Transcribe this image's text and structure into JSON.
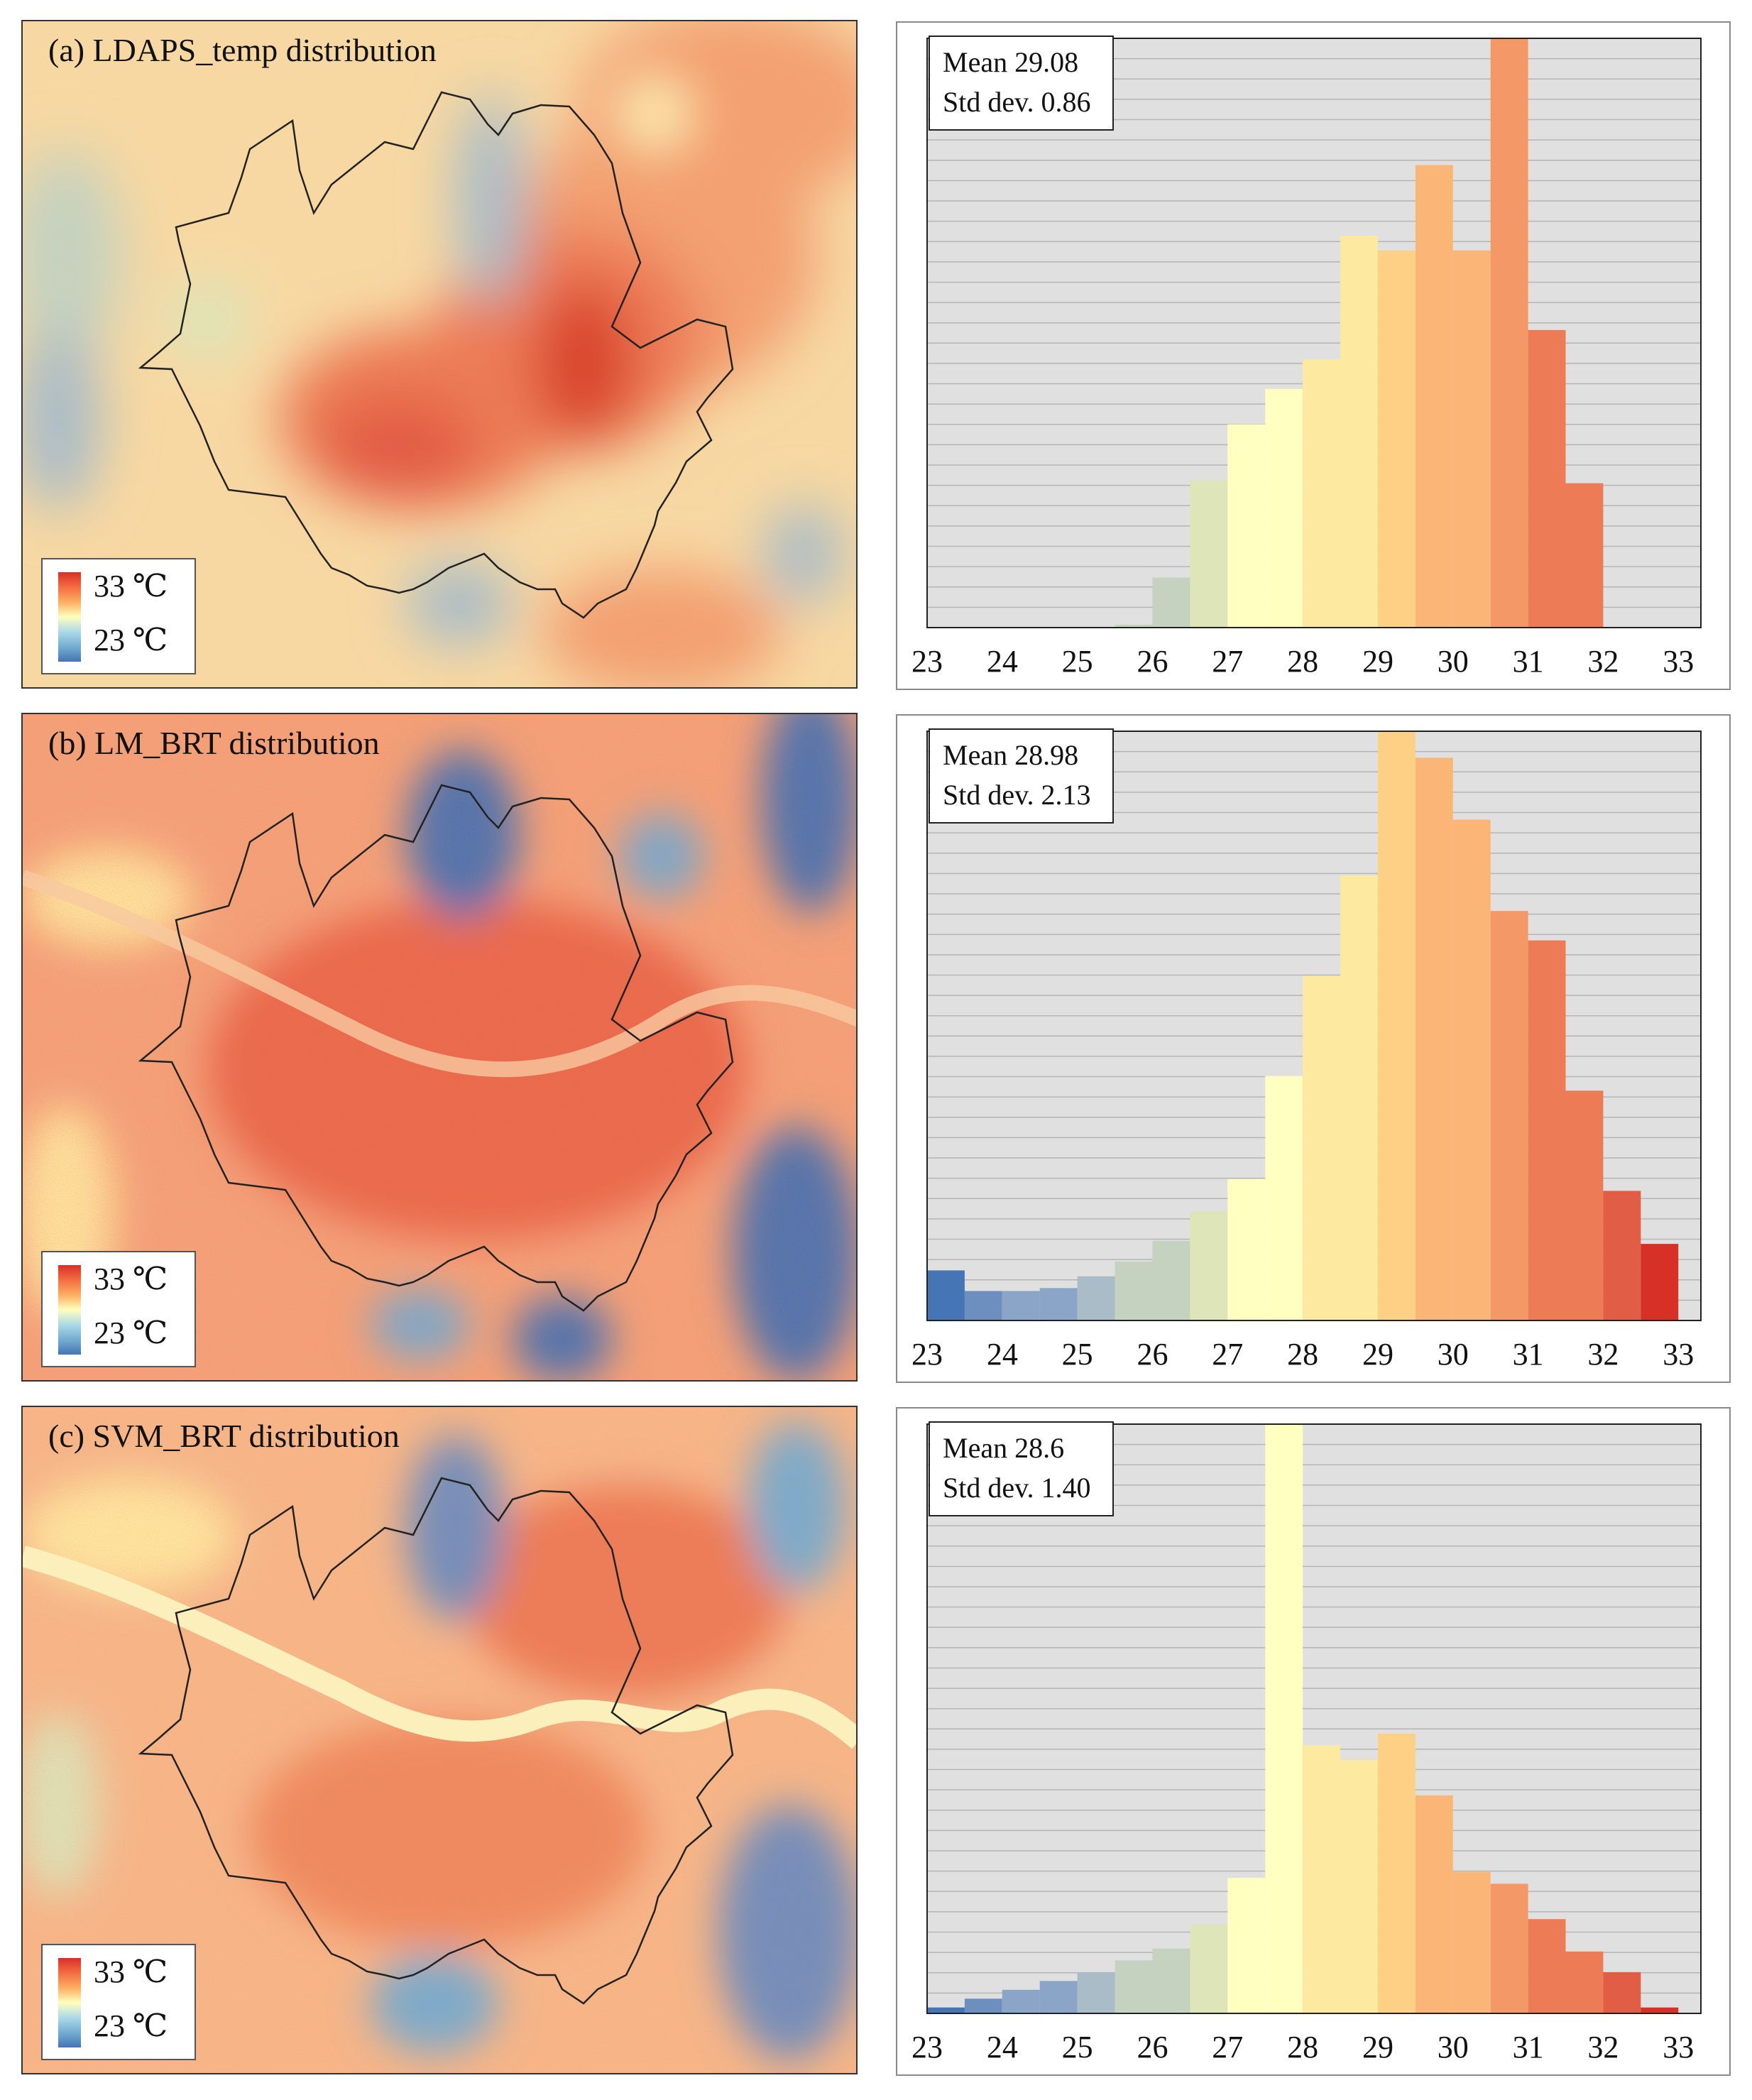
{
  "colors": {
    "palette": [
      "#4575b4",
      "#6c8fc0",
      "#8aa5c8",
      "#a9bcc8",
      "#c5d2bf",
      "#dde5b9",
      "#ffffbf",
      "#fee9a0",
      "#fdd085",
      "#fbb677",
      "#f59868",
      "#ec7b56",
      "#e25d45",
      "#d73027"
    ],
    "frame": "#333333",
    "grid": "#b5b5b5",
    "hist_bg": "#e0e0e0"
  },
  "maps": [
    {
      "id": "a",
      "title": "(a) LDAPS_temp distribution",
      "legend_high": "33 ℃",
      "legend_low": "23 ℃"
    },
    {
      "id": "b",
      "title": "(b) LM_BRT distribution",
      "legend_high": "33 ℃",
      "legend_low": "23 ℃"
    },
    {
      "id": "c",
      "title": "(c) SVM_BRT distribution",
      "legend_high": "33 ℃",
      "legend_low": "23 ℃"
    }
  ],
  "chart_data": [
    {
      "type": "bar",
      "title": "",
      "xlabel": "",
      "ylabel": "",
      "stats": {
        "mean_label": "Mean 29.08",
        "std_label": "Std dev. 0.86"
      },
      "x_ticks": [
        "23",
        "24",
        "25",
        "26",
        "27",
        "28",
        "29",
        "30",
        "31",
        "32",
        "33"
      ],
      "bin_width": 0.5,
      "bin_starts": [
        25.5,
        26.0,
        26.5,
        27.0,
        27.5,
        28.0,
        28.5,
        29.0,
        29.5,
        30.0,
        30.5,
        31.0,
        31.5
      ],
      "values": [
        0.5,
        8.5,
        25,
        34.5,
        40.5,
        45.5,
        66.5,
        64,
        78.5,
        64,
        100,
        50.5,
        24.5
      ],
      "xlim": [
        23,
        33.3
      ],
      "ylim": [
        0,
        100
      ],
      "grid": true
    },
    {
      "type": "bar",
      "title": "",
      "xlabel": "",
      "ylabel": "",
      "stats": {
        "mean_label": "Mean 28.98",
        "std_label": "Std dev. 2.13"
      },
      "x_ticks": [
        "23",
        "24",
        "25",
        "26",
        "27",
        "28",
        "29",
        "30",
        "31",
        "32",
        "33"
      ],
      "bin_width": 0.5,
      "bin_starts": [
        23.0,
        23.5,
        24.0,
        24.5,
        25.0,
        25.5,
        26.0,
        26.5,
        27.0,
        27.5,
        28.0,
        28.5,
        29.0,
        29.5,
        30.0,
        30.5,
        31.0,
        31.5,
        32.0,
        32.5
      ],
      "values": [
        8.5,
        5,
        5,
        5.5,
        7.5,
        10,
        13.5,
        18.5,
        24,
        41.5,
        58.5,
        75.5,
        100,
        95.5,
        85,
        69.5,
        64.5,
        39,
        22,
        13
      ],
      "xlim": [
        23,
        33.3
      ],
      "ylim": [
        0,
        100
      ],
      "grid": true
    },
    {
      "type": "bar",
      "title": "",
      "xlabel": "",
      "ylabel": "",
      "stats": {
        "mean_label": "Mean 28.6",
        "std_label": "Std dev. 1.40"
      },
      "x_ticks": [
        "23",
        "24",
        "25",
        "26",
        "27",
        "28",
        "29",
        "30",
        "31",
        "32",
        "33"
      ],
      "bin_width": 0.5,
      "bin_starts": [
        23.0,
        23.5,
        24.0,
        24.5,
        25.0,
        25.5,
        26.0,
        26.5,
        27.0,
        27.5,
        28.0,
        28.5,
        29.0,
        29.5,
        30.0,
        30.5,
        31.0,
        31.5,
        32.0,
        32.5
      ],
      "values": [
        1,
        2.5,
        4,
        5.5,
        7,
        9,
        11,
        15,
        23,
        100,
        45.5,
        43,
        47.5,
        37,
        24,
        22,
        16,
        10.5,
        7,
        1
      ],
      "xlim": [
        23,
        33.3
      ],
      "ylim": [
        0,
        100
      ],
      "grid": true
    }
  ]
}
